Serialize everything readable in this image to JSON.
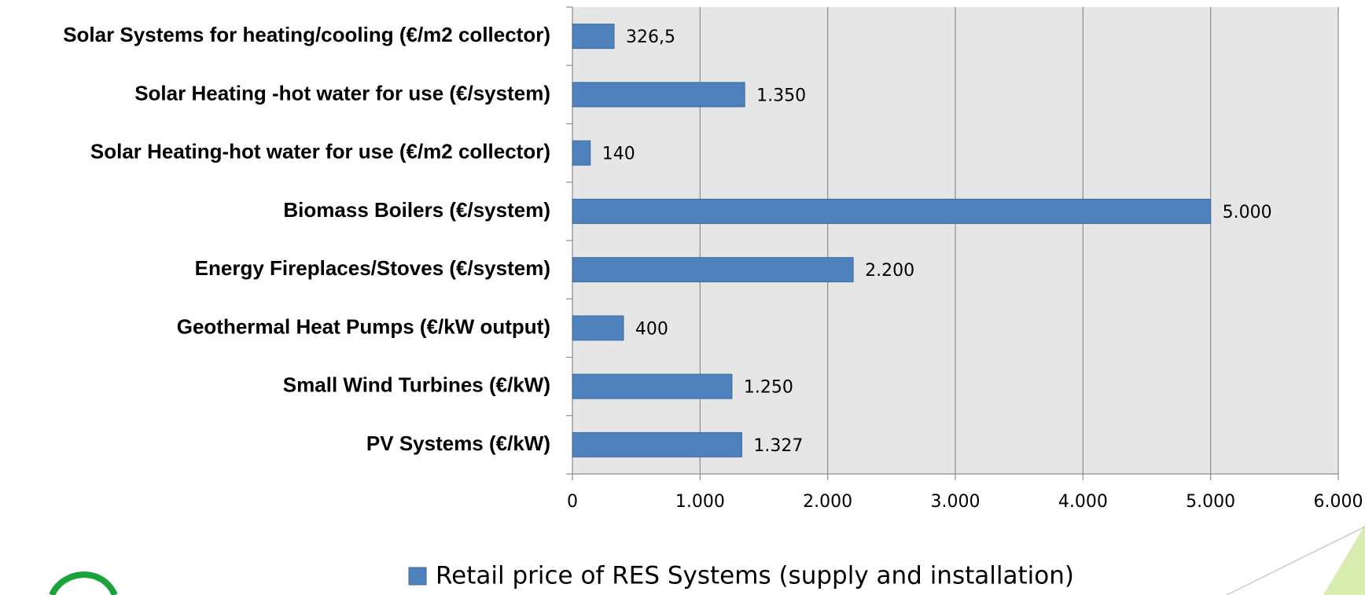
{
  "chart_data": {
    "type": "bar",
    "orientation": "horizontal",
    "categories": [
      "Solar Systems for heating/cooling  (€/m2 collector)",
      "Solar Heating -hot water for use (€/system)",
      "Solar Heating-hot water for use (€/m2 collector)",
      "Biomass Boilers (€/system)",
      "Energy Fireplaces/Stoves (€/system)",
      "Geothermal Heat Pumps (€/kW output)",
      "Small Wind Turbines (€/kW)",
      "PV Systems (€/kW)"
    ],
    "series": [
      {
        "name": "Retail price of RES Systems (supply and installation)",
        "color": "#4f81bd",
        "values": [
          326.5,
          1350,
          140,
          5000,
          2200,
          400,
          1250,
          1327
        ],
        "value_labels": [
          "326,5",
          "1.350",
          "140",
          "5.000",
          "2.200",
          "400",
          "1.250",
          "1.327"
        ]
      }
    ],
    "xlim": [
      0,
      6000
    ],
    "xticks": [
      0,
      {
        "value": 1000,
        "label": "1.000"
      },
      {
        "value": 2000,
        "label": "2.000"
      },
      {
        "value": 3000,
        "label": "3.000"
      },
      {
        "value": 4000,
        "label": "4.000"
      },
      {
        "value": 5000,
        "label": "5.000"
      },
      {
        "value": 6000,
        "label": "6.000"
      }
    ],
    "grid": true,
    "legend": "bottom"
  }
}
